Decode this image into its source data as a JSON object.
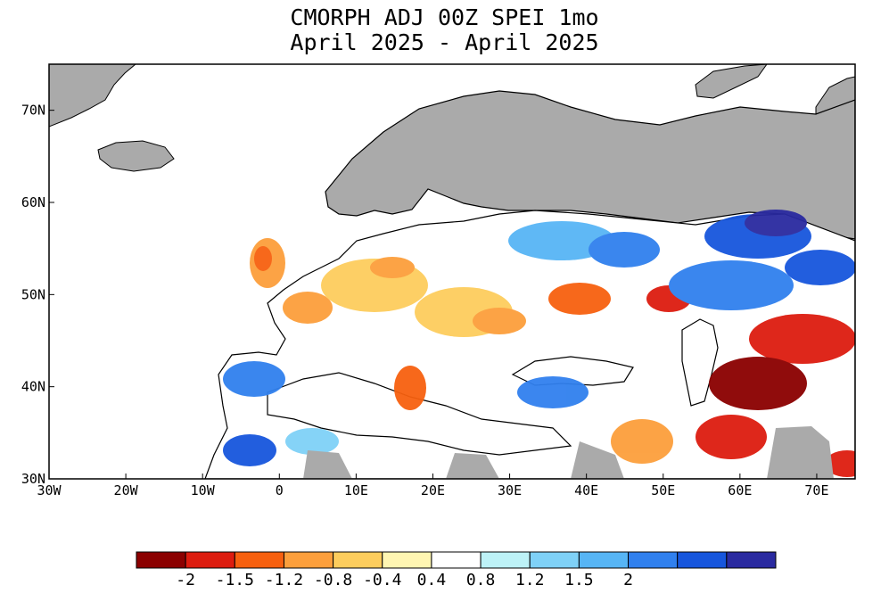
{
  "title": {
    "line1": "CMORPH ADJ 00Z SPEI 1mo",
    "line2": "April 2025 - April 2025"
  },
  "map": {
    "lon_range": [
      -30,
      75
    ],
    "lat_range": [
      30,
      75
    ],
    "x_ticks": [
      {
        "value": -30,
        "label": "30W"
      },
      {
        "value": -20,
        "label": "20W"
      },
      {
        "value": -10,
        "label": "10W"
      },
      {
        "value": 0,
        "label": "0"
      },
      {
        "value": 10,
        "label": "10E"
      },
      {
        "value": 20,
        "label": "20E"
      },
      {
        "value": 30,
        "label": "30E"
      },
      {
        "value": 40,
        "label": "40E"
      },
      {
        "value": 50,
        "label": "50E"
      },
      {
        "value": 60,
        "label": "60E"
      },
      {
        "value": 70,
        "label": "70E"
      }
    ],
    "y_ticks": [
      {
        "value": 30,
        "label": "30N"
      },
      {
        "value": 40,
        "label": "40N"
      },
      {
        "value": 50,
        "label": "50N"
      },
      {
        "value": 60,
        "label": "60N"
      },
      {
        "value": 70,
        "label": "70N"
      }
    ],
    "no_data_color": "#aaaaaa",
    "ocean_color": "#ffffff"
  },
  "colorbar": {
    "colors": [
      "#8b0000",
      "#dd1c0f",
      "#f7600f",
      "#fc9f3c",
      "#fdcd5d",
      "#fff6b2",
      "#ffffff",
      "#bdf2f7",
      "#7fd1f7",
      "#57b5f5",
      "#3080ee",
      "#1756dd",
      "#2a2aa0"
    ],
    "labels": [
      "-2",
      "-1.5",
      "-1.2",
      "-0.8",
      "-0.4",
      "0.4",
      "0.8",
      "1.2",
      "1.5",
      "2"
    ]
  }
}
